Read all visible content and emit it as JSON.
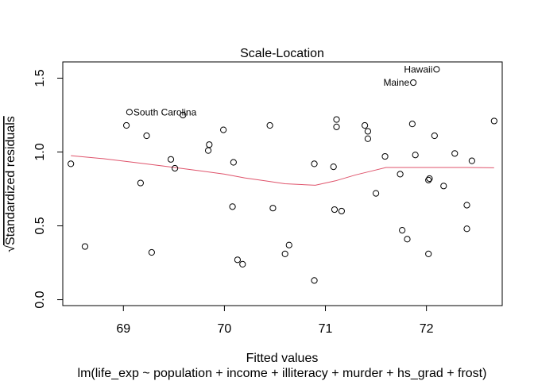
{
  "chart_data": {
    "type": "scatter",
    "title": "Scale-Location",
    "xlabel": "Fitted values",
    "subtitle": "lm(life_exp ~ population + income + illiteracy + murder + hs_grad + frost)",
    "ylabel_prefix": "√",
    "ylabel": "Standardized residuals",
    "xlim": [
      68.4,
      72.75
    ],
    "ylim": [
      -0.04,
      1.61
    ],
    "x_ticks": [
      69,
      70,
      71,
      72
    ],
    "y_ticks": [
      0.0,
      0.5,
      1.0,
      1.5
    ],
    "x_tick_labels": [
      "69",
      "70",
      "71",
      "72"
    ],
    "y_tick_labels": [
      "0.0",
      "0.5",
      "1.0",
      "1.5"
    ],
    "grid": false,
    "points": [
      {
        "x": 68.48,
        "y": 0.92
      },
      {
        "x": 68.62,
        "y": 0.36
      },
      {
        "x": 69.03,
        "y": 1.18
      },
      {
        "x": 69.06,
        "y": 1.27,
        "label": "South Carolina"
      },
      {
        "x": 69.17,
        "y": 0.79
      },
      {
        "x": 69.23,
        "y": 1.11
      },
      {
        "x": 69.28,
        "y": 0.32
      },
      {
        "x": 69.47,
        "y": 0.95
      },
      {
        "x": 69.51,
        "y": 0.89
      },
      {
        "x": 69.59,
        "y": 1.25
      },
      {
        "x": 69.84,
        "y": 1.01
      },
      {
        "x": 69.85,
        "y": 1.05
      },
      {
        "x": 69.99,
        "y": 1.15
      },
      {
        "x": 70.08,
        "y": 0.63
      },
      {
        "x": 70.09,
        "y": 0.93
      },
      {
        "x": 70.13,
        "y": 0.27
      },
      {
        "x": 70.18,
        "y": 0.24
      },
      {
        "x": 70.45,
        "y": 1.18
      },
      {
        "x": 70.48,
        "y": 0.62
      },
      {
        "x": 70.6,
        "y": 0.31
      },
      {
        "x": 70.64,
        "y": 0.37
      },
      {
        "x": 70.89,
        "y": 0.92
      },
      {
        "x": 70.89,
        "y": 0.13
      },
      {
        "x": 71.08,
        "y": 0.9
      },
      {
        "x": 71.09,
        "y": 0.61
      },
      {
        "x": 71.11,
        "y": 1.22
      },
      {
        "x": 71.11,
        "y": 1.17
      },
      {
        "x": 71.16,
        "y": 0.6
      },
      {
        "x": 71.39,
        "y": 1.18
      },
      {
        "x": 71.42,
        "y": 1.14
      },
      {
        "x": 71.42,
        "y": 1.09
      },
      {
        "x": 71.5,
        "y": 0.72
      },
      {
        "x": 71.59,
        "y": 0.97
      },
      {
        "x": 71.74,
        "y": 0.85
      },
      {
        "x": 71.76,
        "y": 0.47
      },
      {
        "x": 71.81,
        "y": 0.41
      },
      {
        "x": 71.86,
        "y": 1.19
      },
      {
        "x": 71.87,
        "y": 1.47,
        "label": "Maine"
      },
      {
        "x": 71.89,
        "y": 0.98
      },
      {
        "x": 72.02,
        "y": 0.81
      },
      {
        "x": 72.03,
        "y": 0.82
      },
      {
        "x": 72.02,
        "y": 0.31
      },
      {
        "x": 72.08,
        "y": 1.11
      },
      {
        "x": 72.1,
        "y": 1.56,
        "label": "Hawaii"
      },
      {
        "x": 72.17,
        "y": 0.77
      },
      {
        "x": 72.28,
        "y": 0.99
      },
      {
        "x": 72.4,
        "y": 0.64
      },
      {
        "x": 72.4,
        "y": 0.48
      },
      {
        "x": 72.45,
        "y": 0.94
      },
      {
        "x": 72.67,
        "y": 1.21
      }
    ],
    "smooth_line": {
      "color": "#DF536B",
      "x": [
        68.48,
        68.8,
        69.1,
        69.4,
        69.7,
        70.0,
        70.2,
        70.4,
        70.6,
        70.9,
        71.1,
        71.3,
        71.45,
        71.6,
        71.8,
        72.1,
        72.4,
        72.67
      ],
      "y": [
        0.975,
        0.955,
        0.93,
        0.905,
        0.878,
        0.85,
        0.825,
        0.805,
        0.785,
        0.775,
        0.805,
        0.845,
        0.87,
        0.895,
        0.895,
        0.895,
        0.895,
        0.893
      ]
    },
    "point_color": "#000000"
  }
}
